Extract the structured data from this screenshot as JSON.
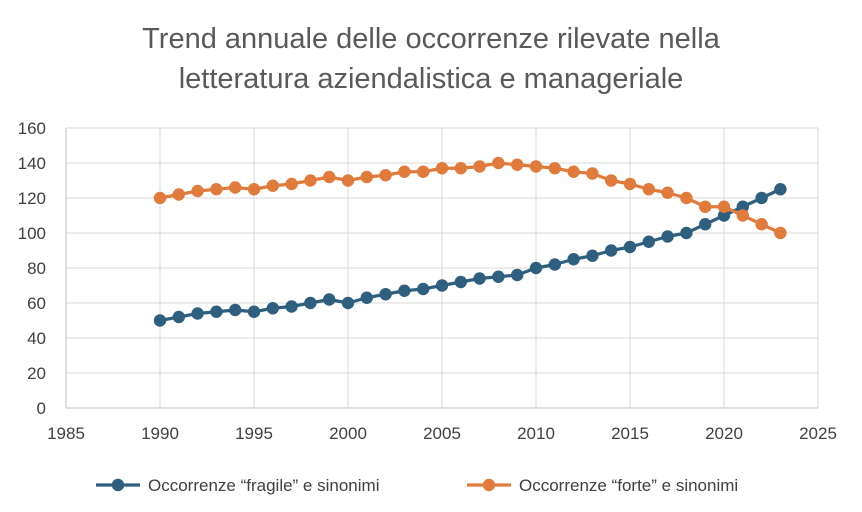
{
  "chart_data": {
    "type": "scatter",
    "title_lines": [
      "Trend annuale delle occorrenze rilevate nella",
      "letteratura aziendalistica e manageriale"
    ],
    "xlim": [
      1985,
      2025
    ],
    "ylim": [
      0,
      160
    ],
    "x_ticks": [
      1985,
      1990,
      1995,
      2000,
      2005,
      2010,
      2015,
      2020,
      2025
    ],
    "y_ticks": [
      0,
      20,
      40,
      60,
      80,
      100,
      120,
      140,
      160
    ],
    "grid": true,
    "legend_position": "bottom",
    "series": [
      {
        "name": "Occorrenze “fragile” e sinonimi",
        "color": "#2e5f7f",
        "x": [
          1990,
          1991,
          1992,
          1993,
          1994,
          1995,
          1996,
          1997,
          1998,
          1999,
          2000,
          2001,
          2002,
          2003,
          2004,
          2005,
          2006,
          2007,
          2008,
          2009,
          2010,
          2011,
          2012,
          2013,
          2014,
          2015,
          2016,
          2017,
          2018,
          2019,
          2020,
          2021,
          2022,
          2023
        ],
        "y": [
          50,
          52,
          54,
          55,
          56,
          55,
          57,
          58,
          60,
          62,
          60,
          63,
          65,
          67,
          68,
          70,
          72,
          74,
          75,
          76,
          80,
          82,
          85,
          87,
          90,
          92,
          95,
          98,
          100,
          105,
          110,
          115,
          120,
          125
        ]
      },
      {
        "name": "Occorrenze “forte” e sinonimi",
        "color": "#e07b3c",
        "x": [
          1990,
          1991,
          1992,
          1993,
          1994,
          1995,
          1996,
          1997,
          1998,
          1999,
          2000,
          2001,
          2002,
          2003,
          2004,
          2005,
          2006,
          2007,
          2008,
          2009,
          2010,
          2011,
          2012,
          2013,
          2014,
          2015,
          2016,
          2017,
          2018,
          2019,
          2020,
          2021,
          2022,
          2023
        ],
        "y": [
          120,
          122,
          124,
          125,
          126,
          125,
          127,
          128,
          130,
          132,
          130,
          132,
          133,
          135,
          135,
          137,
          137,
          138,
          140,
          139,
          138,
          137,
          135,
          134,
          130,
          128,
          125,
          123,
          120,
          115,
          115,
          110,
          105,
          100
        ]
      }
    ]
  }
}
